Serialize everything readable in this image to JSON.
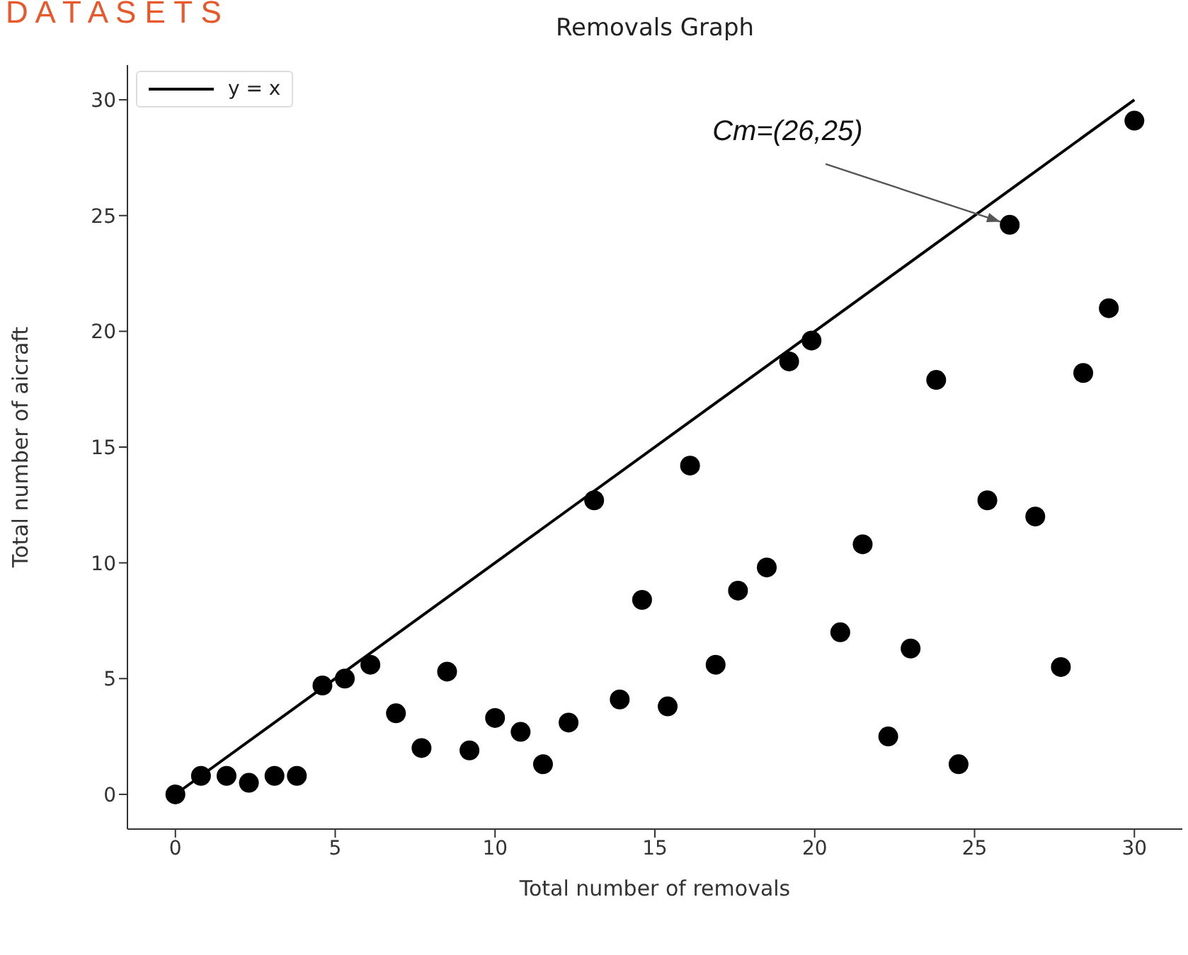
{
  "chart_data": {
    "type": "scatter",
    "title": "Removals Graph",
    "xlabel": "Total number of removals",
    "ylabel": "Total number of aicraft",
    "xlim": [
      -1.5,
      31.5
    ],
    "ylim": [
      -1.5,
      31.5
    ],
    "xticks": [
      0,
      5,
      10,
      15,
      20,
      25,
      30
    ],
    "yticks": [
      0,
      5,
      10,
      15,
      20,
      25,
      30
    ],
    "grid": false,
    "legend": "top left",
    "marker": "circle",
    "annotations": [
      "D A T A S E T S",
      {
        "text": "Cm=(26,25)",
        "x": 26.1,
        "y": 24.6
      }
    ],
    "series": [
      {
        "color": "#000000",
        "x": [
          0,
          0.8,
          1.6,
          2.3,
          3.1,
          3.8,
          4.6,
          5.3,
          6.1,
          6.9,
          7.7,
          8.5,
          9.2,
          10,
          10.8,
          11.5,
          12.3,
          13.1,
          13.9,
          14.6,
          15.4,
          16.1,
          16.9,
          17.6,
          18.5,
          19.2,
          19.9,
          20.8,
          21.5,
          22.3,
          23,
          23.8,
          24.5,
          25.4,
          26.1,
          26.9,
          27.7,
          28.4,
          29.2,
          30
        ],
        "values": [
          0,
          0.8,
          0.8,
          0.5,
          0.8,
          0.8,
          4.7,
          5,
          5.6,
          3.5,
          2,
          5.3,
          1.9,
          3.3,
          2.7,
          1.3,
          3.1,
          12.7,
          4.1,
          8.4,
          3.8,
          14.2,
          5.6,
          8.8,
          9.8,
          18.7,
          19.6,
          7,
          10.8,
          2.5,
          6.3,
          17.9,
          1.3,
          12.7,
          24.6,
          12,
          5.5,
          18.2,
          21,
          29.1
        ]
      },
      {
        "type": "line",
        "name": "y = x",
        "color": "#000000",
        "line_style": "solid",
        "marker": "none",
        "x": [
          0,
          30
        ],
        "values": [
          0,
          30
        ]
      }
    ]
  }
}
